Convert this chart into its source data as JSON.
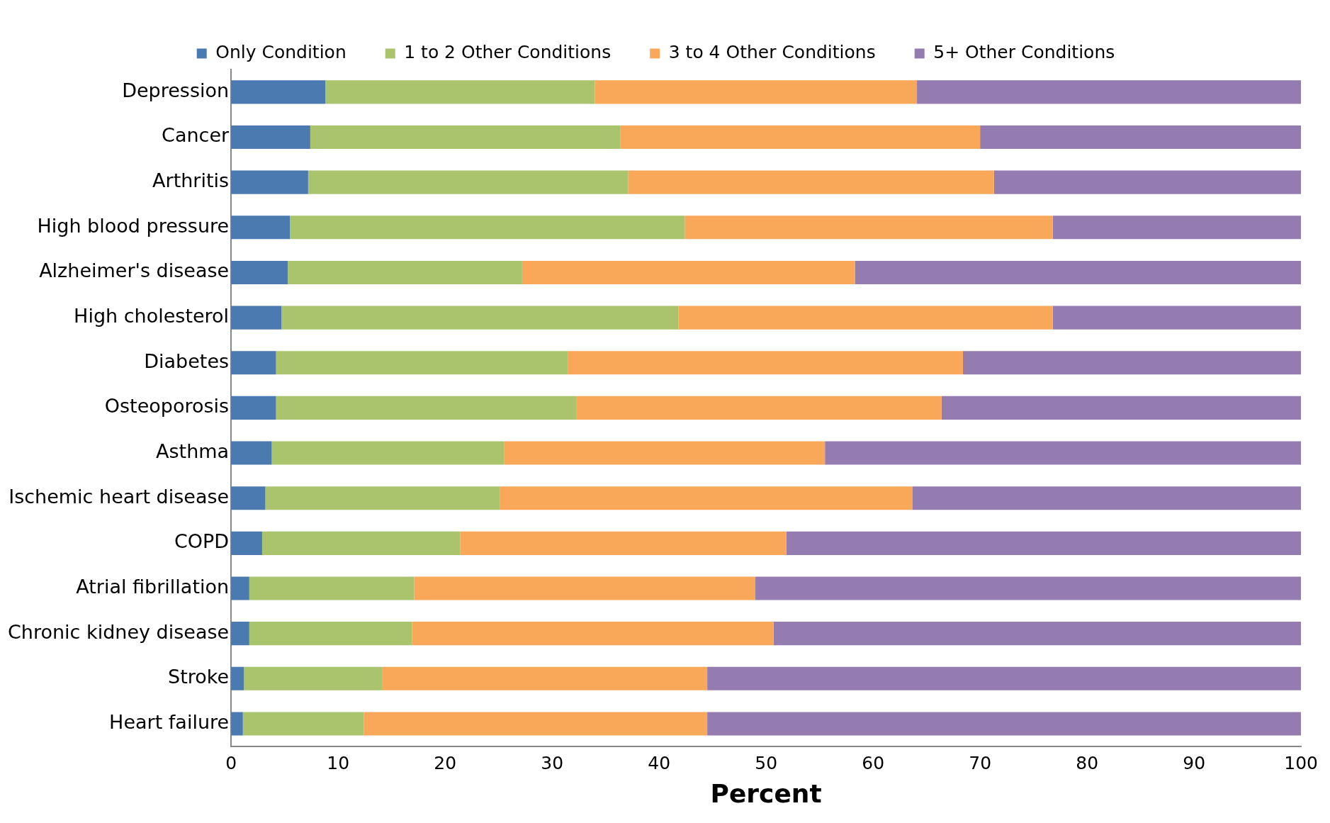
{
  "chart_data": {
    "type": "bar",
    "orientation": "horizontal",
    "stacked": true,
    "xlabel": "Percent",
    "legend": "top",
    "grid": false,
    "categories": [
      "Depression",
      "Cancer",
      "Arthritis",
      "High blood pressure",
      "Alzheimer's disease",
      "High cholesterol",
      "Diabetes",
      "Osteoporosis",
      "Asthma",
      "Ischemic heart disease",
      "COPD",
      "Atrial fibrillation",
      "Chronic kidney disease",
      "Stroke",
      "Heart failure"
    ],
    "xlim": [
      0,
      100
    ],
    "xticks": [
      0,
      10,
      20,
      30,
      40,
      50,
      60,
      70,
      80,
      90,
      100
    ],
    "series": [
      {
        "name": "Only Condition",
        "color": "#4a7ab0",
        "values": [
          8.8,
          7.4,
          7.2,
          5.5,
          5.3,
          4.7,
          4.2,
          4.2,
          3.8,
          3.2,
          2.9,
          1.7,
          1.7,
          1.2,
          1.1
        ]
      },
      {
        "name": "1 to 2 Other Conditions",
        "color": "#a9c46c",
        "values": [
          25.2,
          29.0,
          29.9,
          36.9,
          21.9,
          37.1,
          27.3,
          28.1,
          21.7,
          21.9,
          18.5,
          15.4,
          15.2,
          12.9,
          11.3
        ]
      },
      {
        "name": "3 to 4 Other Conditions",
        "color": "#f9a85a",
        "values": [
          30.1,
          33.6,
          34.2,
          34.4,
          31.1,
          35.0,
          36.9,
          34.1,
          30.0,
          38.6,
          30.5,
          31.9,
          33.8,
          30.4,
          32.1
        ]
      },
      {
        "name": "5+ Other Conditions",
        "color": "#947cb0",
        "values": [
          35.9,
          30.0,
          28.7,
          23.2,
          41.7,
          23.2,
          31.6,
          33.6,
          44.5,
          36.3,
          48.1,
          51.0,
          49.3,
          55.5,
          55.5
        ]
      }
    ]
  }
}
